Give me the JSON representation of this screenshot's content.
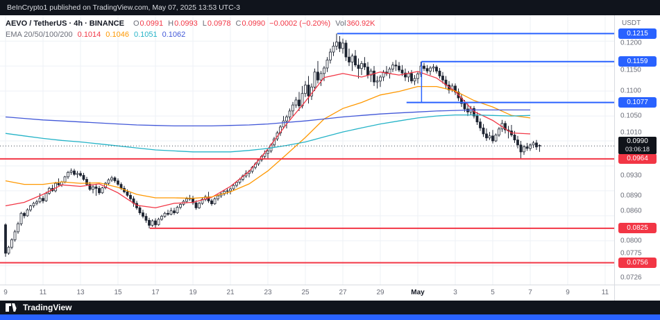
{
  "topbar": {
    "text": "BeInCrypto1 published on TradingView.com, May 07, 2025 13:53 UTC-3"
  },
  "legend": {
    "symbol": "AEVO / TetherUS · 4h · BINANCE",
    "o_label": "O",
    "o_value": "0.0991",
    "h_label": "H",
    "h_value": "0.0993",
    "l_label": "L",
    "l_value": "0.0978",
    "c_label": "C",
    "c_value": "0.0990",
    "change": "−0.0002 (−0.20%)",
    "vol_label": "Vol",
    "vol_value": "360.92K",
    "ema_label": "EMA 20/50/100/200",
    "ema20": "0.1014",
    "ema50": "0.1046",
    "ema100": "0.1051",
    "ema200": "0.1062"
  },
  "price_axis": {
    "currency": "USDT",
    "ticks": [
      {
        "text": "0.1200",
        "price": 0.12,
        "dy": 3
      },
      {
        "text": "0.1150",
        "price": 0.115,
        "dy": 6
      },
      {
        "text": "0.1100",
        "price": 0.11
      },
      {
        "text": "0.1050",
        "price": 0.105
      },
      {
        "text": "0.1010",
        "price": 0.101,
        "dy": -5
      },
      {
        "text": "0.0930",
        "price": 0.093
      },
      {
        "text": "0.0890",
        "price": 0.089
      },
      {
        "text": "0.0860",
        "price": 0.086
      },
      {
        "text": "0.0800",
        "price": 0.08
      },
      {
        "text": "0.0775",
        "price": 0.0775
      },
      {
        "text": "0.0726",
        "price": 0.0726
      }
    ],
    "labels": [
      {
        "text": "0.1215",
        "price": 0.1215,
        "color": "#2962ff"
      },
      {
        "text": "0.1159",
        "price": 0.1159,
        "color": "#2962ff"
      },
      {
        "text": "0.1077",
        "price": 0.1077,
        "color": "#2962ff"
      },
      {
        "text": "0.0964",
        "price": 0.0964,
        "color": "#f23645"
      },
      {
        "text": "0.0825",
        "price": 0.0825,
        "color": "#f23645"
      },
      {
        "text": "0.0756",
        "price": 0.0756,
        "color": "#f23645"
      }
    ],
    "current": {
      "text": "0.0990",
      "countdown": "03:06:18"
    }
  },
  "time_axis": {
    "ticks": [
      {
        "d": 0,
        "label": "9"
      },
      {
        "d": 2,
        "label": "11"
      },
      {
        "d": 4,
        "label": "13"
      },
      {
        "d": 6,
        "label": "15"
      },
      {
        "d": 8,
        "label": "17"
      },
      {
        "d": 10,
        "label": "19"
      },
      {
        "d": 12,
        "label": "21"
      },
      {
        "d": 14,
        "label": "23"
      },
      {
        "d": 16,
        "label": "25"
      },
      {
        "d": 18,
        "label": "27"
      },
      {
        "d": 20,
        "label": "29"
      },
      {
        "d": 22,
        "label": "May",
        "strong": true
      },
      {
        "d": 24,
        "label": "3"
      },
      {
        "d": 26,
        "label": "5"
      },
      {
        "d": 28,
        "label": "7"
      },
      {
        "d": 30,
        "label": "9"
      },
      {
        "d": 32,
        "label": "11"
      }
    ]
  },
  "footer": {
    "brand": "TradingView"
  },
  "colors": {
    "up_candle": "#ffffff",
    "down_candle": "#1d2330",
    "blue_level": "#2962ff",
    "red_level": "#f23645",
    "ema20": "#f23645",
    "ema50": "#ff9800",
    "ema100": "#24b3c7",
    "ema200": "#4157d8"
  },
  "chart_data": {
    "type": "candlestick",
    "title": "AEVO / TetherUS · 4h · BINANCE",
    "interval": "4h",
    "dates_span": "Apr 9 – May 7, 2025",
    "ylim": [
      0.0726,
      0.1235
    ],
    "scale": 0.0001,
    "current_price": 0.099,
    "last_ohlc": {
      "o": 0.0991,
      "h": 0.0993,
      "l": 0.0978,
      "c": 0.099,
      "change": -0.0002,
      "change_pct": -0.2,
      "volume": "360.92K"
    },
    "candles": [
      [
        832,
        835,
        768,
        775
      ],
      [
        775,
        790,
        772,
        787
      ],
      [
        787,
        805,
        783,
        802
      ],
      [
        802,
        822,
        798,
        818
      ],
      [
        818,
        838,
        814,
        834
      ],
      [
        834,
        858,
        830,
        855
      ],
      [
        855,
        858,
        845,
        850
      ],
      [
        850,
        865,
        848,
        862
      ],
      [
        862,
        872,
        858,
        870
      ],
      [
        870,
        878,
        866,
        875
      ],
      [
        875,
        882,
        871,
        878
      ],
      [
        878,
        895,
        875,
        885
      ],
      [
        885,
        890,
        875,
        880
      ],
      [
        880,
        898,
        878,
        895
      ],
      [
        895,
        908,
        892,
        905
      ],
      [
        905,
        912,
        898,
        900
      ],
      [
        900,
        918,
        897,
        915
      ],
      [
        915,
        925,
        910,
        912
      ],
      [
        912,
        920,
        908,
        918
      ],
      [
        918,
        930,
        915,
        928
      ],
      [
        928,
        940,
        924,
        937
      ],
      [
        937,
        945,
        932,
        940
      ],
      [
        940,
        944,
        930,
        933
      ],
      [
        933,
        940,
        926,
        935
      ],
      [
        935,
        940,
        928,
        931
      ],
      [
        931,
        936,
        920,
        923
      ],
      [
        923,
        928,
        910,
        913
      ],
      [
        913,
        918,
        900,
        903
      ],
      [
        903,
        912,
        895,
        908
      ],
      [
        908,
        914,
        890,
        905
      ],
      [
        905,
        910,
        892,
        896
      ],
      [
        896,
        908,
        894,
        906
      ],
      [
        906,
        918,
        903,
        915
      ],
      [
        915,
        925,
        912,
        922
      ],
      [
        922,
        930,
        918,
        926
      ],
      [
        926,
        929,
        916,
        920
      ],
      [
        920,
        925,
        910,
        913
      ],
      [
        913,
        917,
        902,
        905
      ],
      [
        905,
        910,
        895,
        898
      ],
      [
        898,
        903,
        888,
        891
      ],
      [
        891,
        897,
        880,
        884
      ],
      [
        884,
        889,
        868,
        875
      ],
      [
        875,
        880,
        862,
        866
      ],
      [
        866,
        871,
        852,
        856
      ],
      [
        856,
        862,
        845,
        849
      ],
      [
        849,
        855,
        836,
        841
      ],
      [
        841,
        846,
        825,
        831
      ],
      [
        831,
        843,
        828,
        840
      ],
      [
        840,
        845,
        826,
        832
      ],
      [
        832,
        846,
        830,
        843
      ],
      [
        843,
        852,
        840,
        849
      ],
      [
        849,
        858,
        846,
        855
      ],
      [
        855,
        862,
        850,
        853
      ],
      [
        853,
        866,
        851,
        860
      ],
      [
        860,
        866,
        852,
        856
      ],
      [
        856,
        870,
        854,
        867
      ],
      [
        867,
        876,
        863,
        873
      ],
      [
        873,
        882,
        870,
        879
      ],
      [
        879,
        888,
        875,
        884
      ],
      [
        884,
        892,
        880,
        885
      ],
      [
        885,
        890,
        872,
        876
      ],
      [
        876,
        881,
        862,
        866
      ],
      [
        866,
        878,
        864,
        875
      ],
      [
        875,
        886,
        872,
        883
      ],
      [
        883,
        892,
        879,
        888
      ],
      [
        888,
        898,
        876,
        880
      ],
      [
        880,
        884,
        870,
        874
      ],
      [
        874,
        887,
        872,
        884
      ],
      [
        884,
        893,
        880,
        890
      ],
      [
        890,
        897,
        886,
        894
      ],
      [
        894,
        902,
        890,
        899
      ],
      [
        899,
        906,
        893,
        900
      ],
      [
        900,
        907,
        893,
        904
      ],
      [
        904,
        914,
        900,
        911
      ],
      [
        911,
        920,
        907,
        917
      ],
      [
        917,
        926,
        913,
        923
      ],
      [
        923,
        933,
        919,
        930
      ],
      [
        930,
        941,
        926,
        935
      ],
      [
        935,
        942,
        927,
        939
      ],
      [
        939,
        950,
        935,
        947
      ],
      [
        947,
        957,
        943,
        954
      ],
      [
        954,
        965,
        950,
        962
      ],
      [
        962,
        972,
        958,
        969
      ],
      [
        969,
        981,
        964,
        975
      ],
      [
        975,
        983,
        965,
        980
      ],
      [
        980,
        995,
        976,
        992
      ],
      [
        992,
        1008,
        988,
        1004
      ],
      [
        1004,
        1020,
        1000,
        1016
      ],
      [
        1016,
        1032,
        1010,
        1028
      ],
      [
        1028,
        1050,
        1024,
        1040
      ],
      [
        1040,
        1052,
        1025,
        1048
      ],
      [
        1048,
        1065,
        1042,
        1060
      ],
      [
        1060,
        1078,
        1050,
        1072
      ],
      [
        1072,
        1088,
        1066,
        1082
      ],
      [
        1082,
        1098,
        1060,
        1070
      ],
      [
        1070,
        1110,
        1065,
        1095
      ],
      [
        1095,
        1120,
        1088,
        1112
      ],
      [
        1112,
        1130,
        1075,
        1090
      ],
      [
        1090,
        1115,
        1082,
        1108
      ],
      [
        1108,
        1145,
        1100,
        1138
      ],
      [
        1138,
        1160,
        1115,
        1122
      ],
      [
        1122,
        1140,
        1110,
        1135
      ],
      [
        1135,
        1150,
        1120,
        1146
      ],
      [
        1146,
        1168,
        1138,
        1162
      ],
      [
        1162,
        1185,
        1155,
        1178
      ],
      [
        1178,
        1198,
        1170,
        1190
      ],
      [
        1190,
        1215,
        1182,
        1198
      ],
      [
        1198,
        1210,
        1178,
        1185
      ],
      [
        1185,
        1205,
        1175,
        1196
      ],
      [
        1196,
        1202,
        1160,
        1168
      ],
      [
        1168,
        1185,
        1150,
        1158
      ],
      [
        1158,
        1175,
        1140,
        1170
      ],
      [
        1170,
        1182,
        1148,
        1152
      ],
      [
        1152,
        1165,
        1125,
        1145
      ],
      [
        1145,
        1160,
        1132,
        1155
      ],
      [
        1155,
        1168,
        1142,
        1148
      ],
      [
        1148,
        1158,
        1125,
        1132
      ],
      [
        1132,
        1145,
        1118,
        1140
      ],
      [
        1140,
        1150,
        1110,
        1118
      ],
      [
        1118,
        1130,
        1105,
        1120
      ],
      [
        1120,
        1132,
        1108,
        1128
      ],
      [
        1128,
        1142,
        1120,
        1138
      ],
      [
        1138,
        1150,
        1130,
        1135
      ],
      [
        1135,
        1148,
        1125,
        1144
      ],
      [
        1144,
        1158,
        1138,
        1152
      ],
      [
        1152,
        1162,
        1140,
        1150
      ],
      [
        1150,
        1158,
        1138,
        1142
      ],
      [
        1142,
        1152,
        1130,
        1136
      ],
      [
        1136,
        1145,
        1120,
        1128
      ],
      [
        1128,
        1140,
        1118,
        1135
      ],
      [
        1135,
        1142,
        1115,
        1120
      ],
      [
        1120,
        1132,
        1112,
        1125
      ],
      [
        1125,
        1138,
        1115,
        1134
      ],
      [
        1134,
        1159,
        1128,
        1150
      ],
      [
        1150,
        1156,
        1140,
        1145
      ],
      [
        1145,
        1152,
        1135,
        1140
      ],
      [
        1140,
        1150,
        1132,
        1146
      ],
      [
        1146,
        1154,
        1138,
        1148
      ],
      [
        1148,
        1152,
        1135,
        1140
      ],
      [
        1140,
        1146,
        1125,
        1130
      ],
      [
        1130,
        1138,
        1115,
        1122
      ],
      [
        1122,
        1130,
        1105,
        1112
      ],
      [
        1112,
        1120,
        1095,
        1102
      ],
      [
        1102,
        1115,
        1098,
        1110
      ],
      [
        1110,
        1115,
        1092,
        1098
      ],
      [
        1098,
        1105,
        1080,
        1086
      ],
      [
        1086,
        1094,
        1068,
        1075
      ],
      [
        1075,
        1082,
        1058,
        1064
      ],
      [
        1064,
        1075,
        1050,
        1058
      ],
      [
        1058,
        1070,
        1052,
        1065
      ],
      [
        1065,
        1070,
        1045,
        1050
      ],
      [
        1050,
        1058,
        1032,
        1038
      ],
      [
        1038,
        1045,
        1020,
        1026
      ],
      [
        1026,
        1034,
        1008,
        1014
      ],
      [
        1014,
        1025,
        1000,
        1006
      ],
      [
        1006,
        1018,
        1002,
        1010
      ],
      [
        1010,
        1022,
        995,
        1000
      ],
      [
        1000,
        1015,
        998,
        1012
      ],
      [
        1012,
        1028,
        1008,
        1024
      ],
      [
        1024,
        1042,
        1018,
        1035
      ],
      [
        1035,
        1040,
        1015,
        1022
      ],
      [
        1022,
        1030,
        1005,
        1020
      ],
      [
        1020,
        1032,
        1008,
        1012
      ],
      [
        1012,
        1020,
        996,
        1002
      ],
      [
        1002,
        1010,
        985,
        992
      ],
      [
        992,
        1000,
        964,
        978
      ],
      [
        978,
        992,
        972,
        988
      ],
      [
        988,
        996,
        980,
        985
      ],
      [
        985,
        995,
        980,
        992
      ],
      [
        992,
        1000,
        986,
        996
      ],
      [
        996,
        1002,
        982,
        988
      ],
      [
        991,
        993,
        978,
        990
      ]
    ],
    "emas": [
      {
        "period": 20,
        "color": "#f23645",
        "current": 0.1014,
        "values": [
          870,
          877,
          893,
          912,
          909,
          914,
          896,
          871,
          866,
          875,
          877,
          887,
          909,
          939,
          984,
          1034,
          1079,
          1127,
          1135,
          1128,
          1138,
          1132,
          1139,
          1126,
          1099,
          1059,
          1041,
          1016,
          1014
        ]
      },
      {
        "period": 50,
        "color": "#ff9800",
        "current": 0.1046,
        "values": [
          920,
          913,
          913,
          918,
          915,
          916,
          907,
          893,
          886,
          886,
          885,
          888,
          898,
          914,
          940,
          973,
          1007,
          1044,
          1065,
          1077,
          1092,
          1099,
          1109,
          1109,
          1100,
          1081,
          1068,
          1051,
          1046
        ]
      },
      {
        "period": 100,
        "color": "#24b3c7",
        "current": 0.1051,
        "values": [
          1015,
          1010,
          1005,
          1001,
          998,
          994,
          990,
          986,
          982,
          980,
          978,
          978,
          978,
          981,
          985,
          991,
          998,
          1008,
          1018,
          1026,
          1034,
          1040,
          1046,
          1050,
          1052,
          1052,
          1051,
          1050,
          1051
        ]
      },
      {
        "period": 200,
        "color": "#4157d8",
        "current": 0.1062,
        "values": [
          1048,
          1045,
          1042,
          1040,
          1038,
          1036,
          1034,
          1032,
          1031,
          1030,
          1030,
          1030,
          1031,
          1032,
          1034,
          1037,
          1040,
          1044,
          1048,
          1051,
          1054,
          1056,
          1058,
          1060,
          1061,
          1062,
          1062,
          1062,
          1062
        ]
      }
    ],
    "levels": [
      {
        "price": 0.1215,
        "from_day": 17.7,
        "color": "#2962ff"
      },
      {
        "price": 0.1159,
        "from_day": 22.2,
        "color": "#2962ff"
      },
      {
        "price": 0.1077,
        "from_day": 21.4,
        "color": "#2962ff"
      },
      {
        "price": 0.0964,
        "from_day": -0.3,
        "color": "#f23645"
      },
      {
        "price": 0.0825,
        "from_day": 7.7,
        "color": "#f23645"
      },
      {
        "price": 0.0756,
        "from_day": -0.3,
        "color": "#f23645"
      }
    ],
    "connector": {
      "day": 22.2,
      "from": 0.1159,
      "to": 0.1077,
      "color": "#2962ff"
    }
  }
}
